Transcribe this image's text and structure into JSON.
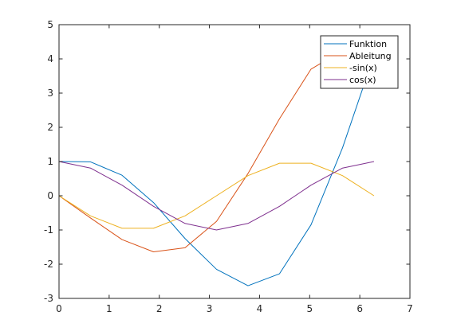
{
  "chart_data": {
    "type": "line",
    "title": "",
    "xlabel": "",
    "ylabel": "",
    "xlim": [
      0,
      7
    ],
    "ylim": [
      -3,
      5
    ],
    "xticks": [
      0,
      1,
      2,
      3,
      4,
      5,
      6,
      7
    ],
    "yticks": [
      -3,
      -2,
      -1,
      0,
      1,
      2,
      3,
      4,
      5
    ],
    "grid": false,
    "legend_position": "top-right",
    "x": [
      0,
      0.6283,
      1.2566,
      1.885,
      2.5133,
      3.1416,
      3.7699,
      4.3982,
      5.0265,
      5.6549,
      6.2832
    ],
    "series": [
      {
        "name": "Funktion",
        "color": "#0072bd",
        "values": [
          1.0,
          0.99,
          0.6,
          -0.2,
          -1.25,
          -2.15,
          -2.63,
          -2.28,
          -0.85,
          1.4,
          4.1
        ]
      },
      {
        "name": "Ableitung",
        "color": "#d95319",
        "values": [
          0.0,
          -0.65,
          -1.28,
          -1.64,
          -1.52,
          -0.75,
          0.65,
          2.25,
          3.7,
          4.25,
          4.4
        ]
      },
      {
        "name": "-sin(x)",
        "color": "#edb120",
        "values": [
          0.0,
          -0.588,
          -0.951,
          -0.951,
          -0.588,
          0.0,
          0.588,
          0.951,
          0.951,
          0.588,
          0.0
        ]
      },
      {
        "name": "cos(x)",
        "color": "#7e2f8e",
        "values": [
          1.0,
          0.809,
          0.309,
          -0.309,
          -0.809,
          -1.0,
          -0.809,
          -0.309,
          0.309,
          0.809,
          1.0
        ]
      }
    ]
  }
}
